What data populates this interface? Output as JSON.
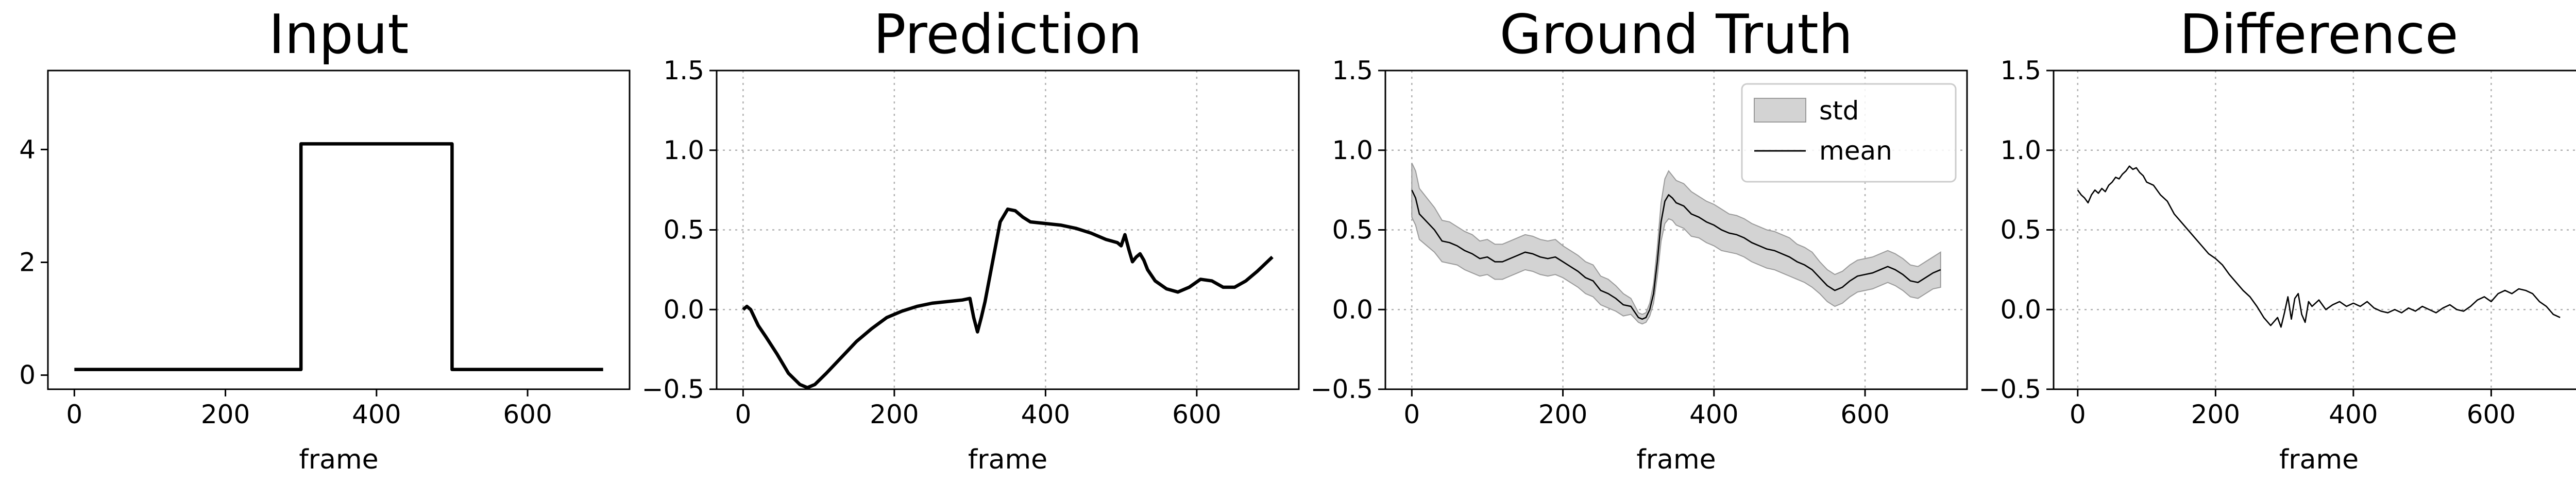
{
  "chart_data": [
    {
      "type": "line",
      "title": "Input",
      "xlabel": "frame",
      "ylabel": "",
      "xlim": [
        -35,
        735
      ],
      "ylim": [
        -0.25,
        5.4
      ],
      "xticks": [
        0,
        200,
        400,
        600
      ],
      "yticks": [
        0,
        2,
        4
      ],
      "grid": false,
      "series": [
        {
          "x": [
            0,
            300,
            300,
            500,
            500,
            700
          ],
          "y": [
            0.1,
            0.1,
            4.1,
            4.1,
            0.1,
            0.1
          ],
          "color": "#000000",
          "width": 2
        }
      ]
    },
    {
      "type": "line",
      "title": "Prediction",
      "xlabel": "frame",
      "ylabel": "",
      "xlim": [
        -35,
        735
      ],
      "ylim": [
        -0.5,
        1.5
      ],
      "xticks": [
        0,
        200,
        400,
        600
      ],
      "yticks": [
        -0.5,
        0.0,
        0.5,
        1.0,
        1.5
      ],
      "grid": true,
      "series": [
        {
          "x": [
            0,
            5,
            10,
            20,
            30,
            45,
            60,
            75,
            85,
            95,
            110,
            130,
            150,
            170,
            190,
            210,
            230,
            250,
            270,
            290,
            300,
            305,
            310,
            315,
            320,
            330,
            340,
            350,
            360,
            370,
            380,
            400,
            420,
            440,
            460,
            480,
            495,
            500,
            505,
            510,
            515,
            520,
            525,
            530,
            535,
            545,
            560,
            575,
            590,
            605,
            620,
            635,
            650,
            665,
            680,
            700
          ],
          "y": [
            0.0,
            0.02,
            0.0,
            -0.1,
            -0.17,
            -0.28,
            -0.4,
            -0.47,
            -0.49,
            -0.47,
            -0.4,
            -0.3,
            -0.2,
            -0.12,
            -0.05,
            -0.01,
            0.02,
            0.04,
            0.05,
            0.06,
            0.07,
            -0.05,
            -0.14,
            -0.05,
            0.05,
            0.3,
            0.55,
            0.63,
            0.62,
            0.58,
            0.55,
            0.54,
            0.53,
            0.51,
            0.48,
            0.44,
            0.42,
            0.4,
            0.47,
            0.38,
            0.3,
            0.33,
            0.35,
            0.31,
            0.25,
            0.18,
            0.13,
            0.11,
            0.14,
            0.19,
            0.18,
            0.14,
            0.14,
            0.18,
            0.24,
            0.33
          ],
          "color": "#000000",
          "width": 2
        }
      ]
    },
    {
      "type": "area",
      "title": "Ground Truth",
      "xlabel": "frame",
      "ylabel": "",
      "xlim": [
        -35,
        735
      ],
      "ylim": [
        -0.5,
        1.5
      ],
      "xticks": [
        0,
        200,
        400,
        600
      ],
      "yticks": [
        -0.5,
        0.0,
        0.5,
        1.0,
        1.5
      ],
      "grid": true,
      "legend": {
        "position": "upper right",
        "entries": [
          "std",
          "mean"
        ]
      },
      "series": [
        {
          "name": "mean",
          "x": [
            0,
            5,
            10,
            20,
            30,
            40,
            50,
            60,
            70,
            80,
            90,
            100,
            110,
            120,
            130,
            140,
            150,
            160,
            170,
            180,
            190,
            200,
            210,
            220,
            230,
            240,
            250,
            260,
            270,
            280,
            290,
            300,
            305,
            310,
            315,
            320,
            325,
            330,
            335,
            340,
            345,
            350,
            360,
            370,
            380,
            390,
            400,
            410,
            420,
            430,
            440,
            450,
            460,
            470,
            480,
            490,
            500,
            510,
            520,
            530,
            540,
            550,
            560,
            570,
            580,
            590,
            600,
            610,
            620,
            630,
            640,
            650,
            660,
            670,
            680,
            690,
            700
          ],
          "y": [
            0.75,
            0.7,
            0.6,
            0.55,
            0.5,
            0.43,
            0.42,
            0.4,
            0.37,
            0.35,
            0.32,
            0.33,
            0.3,
            0.3,
            0.32,
            0.34,
            0.36,
            0.35,
            0.33,
            0.32,
            0.33,
            0.3,
            0.27,
            0.24,
            0.2,
            0.18,
            0.12,
            0.1,
            0.07,
            0.03,
            0.02,
            -0.05,
            -0.06,
            -0.05,
            0.0,
            0.1,
            0.3,
            0.55,
            0.68,
            0.72,
            0.7,
            0.67,
            0.65,
            0.6,
            0.58,
            0.55,
            0.53,
            0.5,
            0.48,
            0.47,
            0.45,
            0.42,
            0.4,
            0.38,
            0.37,
            0.35,
            0.33,
            0.3,
            0.28,
            0.25,
            0.2,
            0.15,
            0.12,
            0.14,
            0.18,
            0.21,
            0.22,
            0.23,
            0.25,
            0.27,
            0.25,
            0.22,
            0.18,
            0.17,
            0.2,
            0.23,
            0.25
          ],
          "color": "#000000",
          "width": 1
        },
        {
          "name": "std",
          "x": [
            0,
            5,
            10,
            20,
            30,
            40,
            50,
            60,
            70,
            80,
            90,
            100,
            110,
            120,
            130,
            140,
            150,
            160,
            170,
            180,
            190,
            200,
            210,
            220,
            230,
            240,
            250,
            260,
            270,
            280,
            290,
            300,
            305,
            310,
            315,
            320,
            325,
            330,
            335,
            340,
            345,
            350,
            360,
            370,
            380,
            390,
            400,
            410,
            420,
            430,
            440,
            450,
            460,
            470,
            480,
            490,
            500,
            510,
            520,
            530,
            540,
            550,
            560,
            570,
            580,
            590,
            600,
            610,
            620,
            630,
            640,
            650,
            660,
            670,
            680,
            690,
            700
          ],
          "spread": [
            0.17,
            0.17,
            0.16,
            0.15,
            0.14,
            0.13,
            0.13,
            0.12,
            0.12,
            0.12,
            0.11,
            0.11,
            0.11,
            0.11,
            0.11,
            0.11,
            0.11,
            0.11,
            0.11,
            0.11,
            0.11,
            0.1,
            0.1,
            0.1,
            0.1,
            0.1,
            0.09,
            0.09,
            0.08,
            0.07,
            0.05,
            0.03,
            0.03,
            0.03,
            0.04,
            0.06,
            0.09,
            0.12,
            0.14,
            0.15,
            0.14,
            0.14,
            0.14,
            0.14,
            0.13,
            0.13,
            0.13,
            0.13,
            0.12,
            0.12,
            0.12,
            0.12,
            0.12,
            0.12,
            0.12,
            0.12,
            0.12,
            0.11,
            0.11,
            0.11,
            0.1,
            0.1,
            0.1,
            0.1,
            0.1,
            0.1,
            0.1,
            0.1,
            0.1,
            0.1,
            0.1,
            0.1,
            0.1,
            0.1,
            0.1,
            0.1,
            0.11
          ],
          "color": "#d3d3d3"
        }
      ]
    },
    {
      "type": "line",
      "title": "Difference",
      "xlabel": "frame",
      "ylabel": "",
      "xlim": [
        -35,
        735
      ],
      "ylim": [
        -0.5,
        1.5
      ],
      "xticks": [
        0,
        200,
        400,
        600
      ],
      "yticks": [
        -0.5,
        0.0,
        0.5,
        1.0,
        1.5
      ],
      "grid": true,
      "series": [
        {
          "x": [
            0,
            5,
            10,
            15,
            20,
            25,
            30,
            35,
            40,
            45,
            50,
            55,
            60,
            65,
            70,
            75,
            80,
            85,
            90,
            95,
            100,
            110,
            120,
            130,
            140,
            150,
            160,
            170,
            180,
            190,
            200,
            210,
            220,
            230,
            240,
            250,
            260,
            270,
            280,
            290,
            295,
            300,
            305,
            310,
            315,
            320,
            325,
            330,
            335,
            340,
            350,
            360,
            370,
            380,
            390,
            400,
            410,
            420,
            430,
            440,
            450,
            460,
            470,
            480,
            490,
            500,
            510,
            520,
            530,
            540,
            550,
            560,
            570,
            580,
            590,
            600,
            610,
            620,
            630,
            640,
            650,
            660,
            670,
            680,
            690,
            700
          ],
          "y": [
            0.75,
            0.72,
            0.7,
            0.67,
            0.72,
            0.75,
            0.73,
            0.76,
            0.74,
            0.78,
            0.8,
            0.83,
            0.82,
            0.85,
            0.87,
            0.9,
            0.88,
            0.89,
            0.86,
            0.84,
            0.8,
            0.78,
            0.72,
            0.68,
            0.6,
            0.55,
            0.5,
            0.45,
            0.4,
            0.35,
            0.32,
            0.28,
            0.22,
            0.17,
            0.12,
            0.08,
            0.02,
            -0.05,
            -0.1,
            -0.05,
            -0.11,
            -0.02,
            0.08,
            -0.06,
            0.07,
            0.1,
            -0.03,
            -0.08,
            0.05,
            0.02,
            0.06,
            0.0,
            0.03,
            0.05,
            0.02,
            0.04,
            0.02,
            0.05,
            0.01,
            -0.01,
            -0.02,
            0.0,
            -0.02,
            0.01,
            -0.01,
            0.02,
            0.0,
            -0.02,
            0.01,
            0.03,
            0.0,
            -0.01,
            0.02,
            0.06,
            0.08,
            0.05,
            0.1,
            0.12,
            0.1,
            0.13,
            0.12,
            0.1,
            0.05,
            0.02,
            -0.03,
            -0.05
          ],
          "color": "#000000",
          "width": 1
        }
      ]
    }
  ]
}
